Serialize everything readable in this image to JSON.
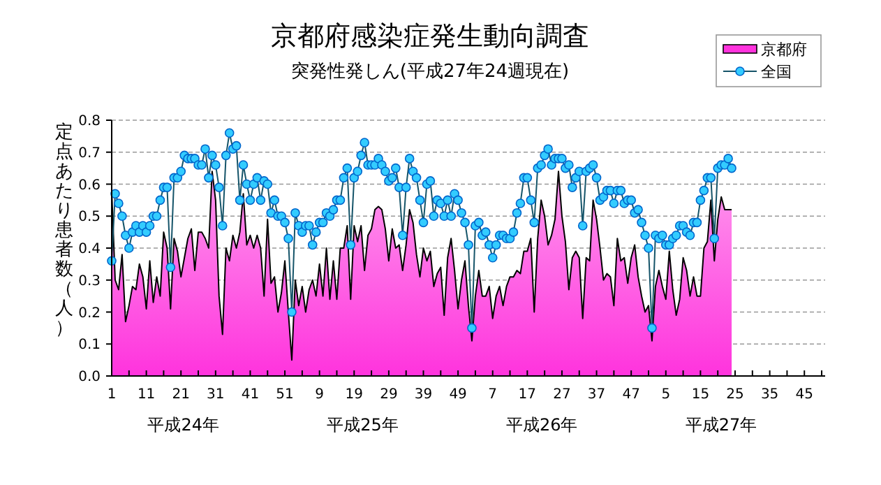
{
  "chart_data": {
    "type": "area",
    "title": "京都府感染症発生動向調査",
    "subtitle": "突発性発しん(平成27年24週現在)",
    "ylabel": "定点あたり患者数（人）",
    "categories": [
      "1",
      null,
      null,
      null,
      null,
      null,
      null,
      null,
      null,
      null,
      "11",
      null,
      null,
      null,
      null,
      null,
      null,
      null,
      null,
      null,
      "21",
      null,
      null,
      null,
      null,
      null,
      null,
      null,
      null,
      null,
      "31",
      null,
      null,
      null,
      null,
      null,
      null,
      null,
      null,
      null,
      "41",
      null,
      null,
      null,
      null,
      null,
      null,
      null,
      null,
      null,
      "51",
      null,
      null,
      null,
      null,
      null,
      null,
      null,
      null,
      null,
      "9",
      null,
      null,
      null,
      null,
      null,
      null,
      null,
      null,
      null,
      "19",
      null,
      null,
      null,
      null,
      null,
      null,
      null,
      null,
      null,
      "29",
      null,
      null,
      null,
      null,
      null,
      null,
      null,
      null,
      null,
      "39",
      null,
      null,
      null,
      null,
      null,
      null,
      null,
      null,
      null,
      "49",
      null,
      null,
      null,
      null,
      null,
      null,
      null,
      null,
      null,
      "7",
      null,
      null,
      null,
      null,
      null,
      null,
      null,
      null,
      null,
      "17",
      null,
      null,
      null,
      null,
      null,
      null,
      null,
      null,
      null,
      "27",
      null,
      null,
      null,
      null,
      null,
      null,
      null,
      null,
      null,
      "37",
      null,
      null,
      null,
      null,
      null,
      null,
      null,
      null,
      null,
      "47",
      null,
      null,
      null,
      null,
      null,
      null,
      null,
      null,
      null,
      "5",
      null,
      null,
      null,
      null,
      null,
      null,
      null,
      null,
      null,
      "15",
      null,
      null,
      null,
      null,
      null,
      null,
      null,
      null,
      null,
      "25",
      null,
      null,
      null,
      null,
      null,
      null,
      null,
      null,
      null,
      "35",
      null,
      null,
      null,
      null,
      null,
      null,
      null,
      null,
      null,
      "45",
      null,
      null,
      null,
      null,
      null,
      null
    ],
    "series": [
      {
        "name": "京都府",
        "color": "#ff33dd",
        "values": [
          0.58,
          0.3,
          0.27,
          0.38,
          0.17,
          0.22,
          0.28,
          0.27,
          0.35,
          0.31,
          0.21,
          0.36,
          0.23,
          0.31,
          0.25,
          0.45,
          0.4,
          0.21,
          0.43,
          0.39,
          0.31,
          0.37,
          0.43,
          0.46,
          0.33,
          0.45,
          0.45,
          0.43,
          0.4,
          0.64,
          0.55,
          0.25,
          0.13,
          0.4,
          0.36,
          0.44,
          0.4,
          0.45,
          0.57,
          0.41,
          0.44,
          0.4,
          0.44,
          0.4,
          0.25,
          0.49,
          0.29,
          0.31,
          0.2,
          0.26,
          0.36,
          0.2,
          0.05,
          0.3,
          0.22,
          0.28,
          0.2,
          0.27,
          0.3,
          0.25,
          0.35,
          0.25,
          0.4,
          0.24,
          0.36,
          0.24,
          0.4,
          0.4,
          0.47,
          0.24,
          0.47,
          0.42,
          0.47,
          0.33,
          0.44,
          0.46,
          0.52,
          0.53,
          0.52,
          0.46,
          0.36,
          0.46,
          0.4,
          0.41,
          0.33,
          0.41,
          0.52,
          0.48,
          0.38,
          0.31,
          0.4,
          0.36,
          0.39,
          0.28,
          0.32,
          0.34,
          0.19,
          0.37,
          0.43,
          0.33,
          0.21,
          0.3,
          0.36,
          0.22,
          0.11,
          0.25,
          0.33,
          0.25,
          0.25,
          0.28,
          0.18,
          0.25,
          0.28,
          0.22,
          0.28,
          0.31,
          0.31,
          0.33,
          0.32,
          0.39,
          0.39,
          0.43,
          0.2,
          0.43,
          0.55,
          0.5,
          0.41,
          0.44,
          0.49,
          0.64,
          0.5,
          0.42,
          0.27,
          0.37,
          0.39,
          0.37,
          0.18,
          0.37,
          0.36,
          0.55,
          0.49,
          0.4,
          0.3,
          0.32,
          0.31,
          0.22,
          0.43,
          0.36,
          0.37,
          0.29,
          0.37,
          0.41,
          0.31,
          0.25,
          0.2,
          0.22,
          0.11,
          0.28,
          0.33,
          0.28,
          0.24,
          0.39,
          0.27,
          0.19,
          0.24,
          0.37,
          0.33,
          0.25,
          0.31,
          0.25,
          0.25,
          0.4,
          0.42,
          0.55,
          0.36,
          0.49,
          0.56,
          0.52,
          0.52,
          0.52,
          null,
          null,
          null,
          null,
          null,
          null,
          null,
          null,
          null,
          null,
          null,
          null,
          null,
          null,
          null,
          null,
          null,
          null,
          null,
          null,
          null,
          null,
          null,
          null,
          null,
          null,
          null
        ]
      },
      {
        "name": "全国",
        "type": "line",
        "marker": "circle",
        "color": "#33ccff",
        "values": [
          0.36,
          0.57,
          0.54,
          0.5,
          0.44,
          0.4,
          0.45,
          0.47,
          0.45,
          0.47,
          0.45,
          0.47,
          0.5,
          0.5,
          0.55,
          0.59,
          0.59,
          0.34,
          0.62,
          0.62,
          0.64,
          0.69,
          0.68,
          0.68,
          0.68,
          0.66,
          0.66,
          0.71,
          0.62,
          0.69,
          0.66,
          0.59,
          0.47,
          0.69,
          0.76,
          0.71,
          0.72,
          0.55,
          0.66,
          0.6,
          0.55,
          0.6,
          0.62,
          0.55,
          0.61,
          0.6,
          0.51,
          0.55,
          0.5,
          0.5,
          0.48,
          0.43,
          0.2,
          0.51,
          0.47,
          0.45,
          0.47,
          0.47,
          0.41,
          0.45,
          0.48,
          0.48,
          0.51,
          0.5,
          0.52,
          0.55,
          0.55,
          0.62,
          0.65,
          0.41,
          0.62,
          0.64,
          0.69,
          0.73,
          0.66,
          0.66,
          0.66,
          0.68,
          0.66,
          0.64,
          0.61,
          0.62,
          0.65,
          0.59,
          0.44,
          0.59,
          0.68,
          0.64,
          0.62,
          0.55,
          0.48,
          0.6,
          0.61,
          0.5,
          0.55,
          0.54,
          0.5,
          0.55,
          0.5,
          0.57,
          0.55,
          0.51,
          0.48,
          0.41,
          0.15,
          0.47,
          0.48,
          0.44,
          0.45,
          0.41,
          0.37,
          0.41,
          0.44,
          0.44,
          0.43,
          0.43,
          0.45,
          0.51,
          0.54,
          0.62,
          0.62,
          0.55,
          0.48,
          0.65,
          0.66,
          0.69,
          0.71,
          0.66,
          0.68,
          0.68,
          0.68,
          0.65,
          0.66,
          0.59,
          0.62,
          0.64,
          0.47,
          0.64,
          0.65,
          0.66,
          0.62,
          0.55,
          0.56,
          0.58,
          0.58,
          0.54,
          0.58,
          0.58,
          0.54,
          0.55,
          0.55,
          0.51,
          0.52,
          0.48,
          0.44,
          0.4,
          0.15,
          0.44,
          0.43,
          0.44,
          0.41,
          0.41,
          0.43,
          0.44,
          0.47,
          0.47,
          0.45,
          0.44,
          0.48,
          0.48,
          0.55,
          0.58,
          0.62,
          0.62,
          0.43,
          0.65,
          0.66,
          0.66,
          0.68,
          0.65,
          null,
          null,
          null,
          null,
          null,
          null,
          null,
          null,
          null,
          null,
          null,
          null,
          null,
          null,
          null,
          null,
          null,
          null,
          null,
          null,
          null,
          null,
          null,
          null,
          null,
          null,
          null
        ]
      }
    ],
    "grid": "y",
    "legend": "top right",
    "ylim": [
      0,
      0.8
    ],
    "yticks": [
      {
        "value": 0,
        "label": "0.0"
      },
      0.1,
      0.2,
      0.3,
      0.4,
      0.5,
      0.6,
      0.7,
      0.8
    ],
    "annotations": [
      "平成24年",
      "平成25年",
      "平成26年",
      "平成27年"
    ]
  }
}
